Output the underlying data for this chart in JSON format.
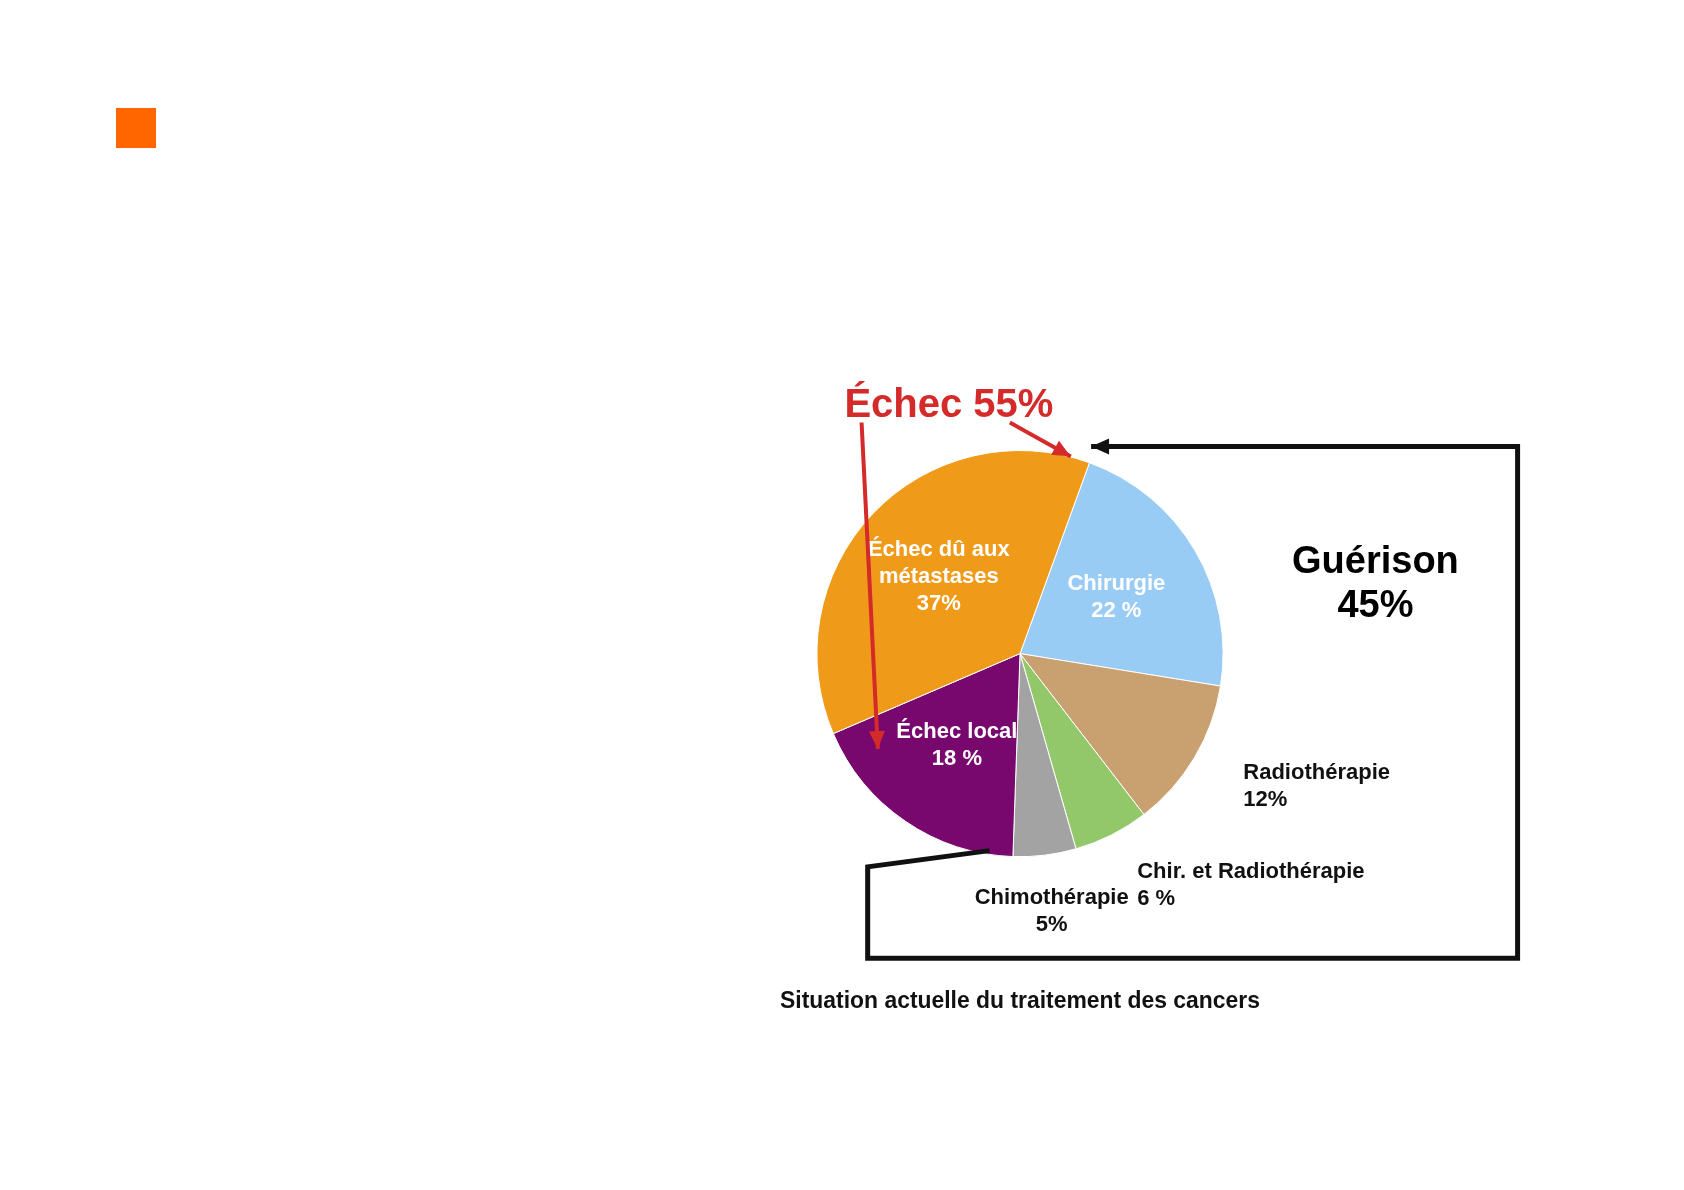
{
  "chart_data": {
    "type": "pie",
    "title": "Situation actuelle du traitement des cancers",
    "categories": [
      "Chirurgie",
      "Radiothérapie",
      "Chir. et Radiothérapie",
      "Chimothérapie",
      "Échec local",
      "Échec dû aux métastases"
    ],
    "values": [
      22,
      12,
      6,
      5,
      18,
      37
    ],
    "value_labels": [
      "22 %",
      "12%",
      "6 %",
      "5%",
      "18 %",
      "37%"
    ],
    "colors": [
      "#99ccf5",
      "#c9a070",
      "#92c86a",
      "#a3a3a3",
      "#78086e",
      "#f09a1a"
    ],
    "annotations": [
      "Échec 55%",
      "Guérison 45%"
    ],
    "legend": false
  }
}
